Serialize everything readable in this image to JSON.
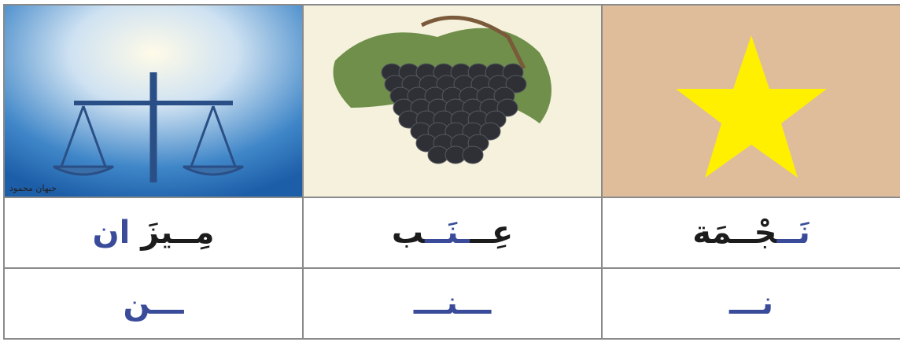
{
  "table": {
    "watermark": "جيهان محمود",
    "columns": [
      {
        "word": [
          {
            "text": "مِــيزَ ",
            "color": "#1c1c1c"
          },
          {
            "text": "ان",
            "color": "#3a4b9a"
          }
        ],
        "letter": "ـــن",
        "letter_color": "#3a4b9a"
      },
      {
        "word": [
          {
            "text": "عِــ",
            "color": "#1c1c1c"
          },
          {
            "text": "ـنَــ",
            "color": "#3a4b9a"
          },
          {
            "text": "ب",
            "color": "#1c1c1c"
          }
        ],
        "letter": "ـــنـــ",
        "letter_color": "#3a4b9a"
      },
      {
        "word": [
          {
            "text": "نَــ",
            "color": "#3a4b9a"
          },
          {
            "text": "جْــمَة",
            "color": "#1c1c1c"
          }
        ],
        "letter": "نـــ",
        "letter_color": "#3a4b9a"
      }
    ]
  }
}
